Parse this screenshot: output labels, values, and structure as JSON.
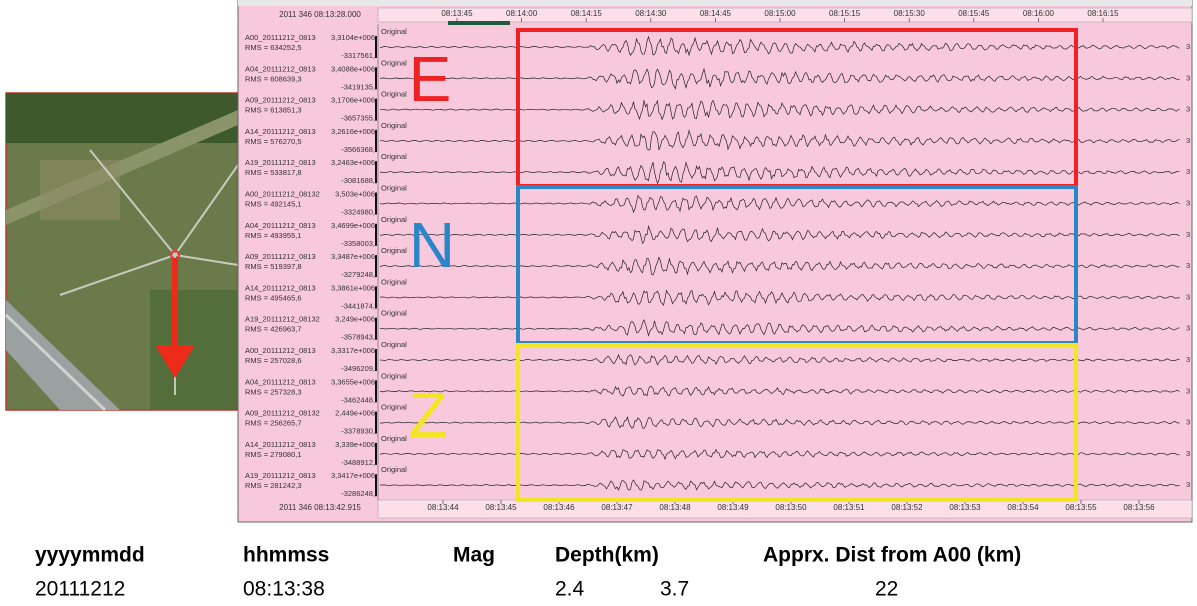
{
  "seismogram": {
    "start_time": "2011 346 08:13:28.000",
    "end_time": "2011 346 08:13:42.915",
    "top_ticks": [
      "08:13:45",
      "08:14:00",
      "08:14:15",
      "08:14:30",
      "08:14:45",
      "08:15:00",
      "08:15:15",
      "08:15:30",
      "08:15:45",
      "08:16:00",
      "08:16:15"
    ],
    "bottom_ticks": [
      "08:13:44",
      "08:13:45",
      "08:13:46",
      "08:13:47",
      "08:13:48",
      "08:13:49",
      "08:13:50",
      "08:13:51",
      "08:13:52",
      "08:13:53",
      "08:13:54",
      "08:13:55",
      "08:13:56"
    ],
    "component_labels": [
      "E",
      "N",
      "Z"
    ],
    "traces": [
      {
        "name": "A00_20111212_0813",
        "max": "3,3104e+006",
        "rms": "RMS = 634252,5",
        "min": "-3317561,",
        "tag": "Original",
        "edge": "3"
      },
      {
        "name": "A04_20111212_0813",
        "max": "3,4088e+006",
        "rms": "RMS = 608639,3",
        "min": "-3419135,",
        "tag": "Original",
        "edge": "3"
      },
      {
        "name": "A09_20111212_0813",
        "max": "3,1706e+006",
        "rms": "RMS = 613851,3",
        "min": "-3657355,",
        "tag": "Original",
        "edge": "3"
      },
      {
        "name": "A14_20111212_0813",
        "max": "3,2616e+006",
        "rms": "RMS = 576270,5",
        "min": "-3566368,",
        "tag": "Original",
        "edge": "3"
      },
      {
        "name": "A19_20111212_0813",
        "max": "3,2463e+006",
        "rms": "RMS = 533817,8",
        "min": "-3081688,",
        "tag": "Original",
        "edge": "3"
      },
      {
        "name": "A00_20111212_08132",
        "max": "3,503e+006",
        "rms": "RMS = 492145,1",
        "min": "-3324980,",
        "tag": "Original",
        "edge": "3"
      },
      {
        "name": "A04_20111212_0813",
        "max": "3,4699e+006",
        "rms": "RMS = 493955,1",
        "min": "-3358003,",
        "tag": "Original",
        "edge": "3"
      },
      {
        "name": "A09_20111212_0813",
        "max": "3,3487e+006",
        "rms": "RMS = 519397,8",
        "min": "-3279248,",
        "tag": "Original",
        "edge": "3"
      },
      {
        "name": "A14_20111212_0813",
        "max": "3,3861e+006",
        "rms": "RMS = 495465,6",
        "min": "-3441874,",
        "tag": "Original",
        "edge": "3"
      },
      {
        "name": "A19_20111212_08132",
        "max": "3,249e+006",
        "rms": "RMS = 426963,7",
        "min": "-3578943,",
        "tag": "Original",
        "edge": "3"
      },
      {
        "name": "A00_20111212_0813",
        "max": "3,3317e+006",
        "rms": "RMS = 257028,6",
        "min": "-3496209,",
        "tag": "Original",
        "edge": "3"
      },
      {
        "name": "A04_20111212_0813",
        "max": "3,3655e+006",
        "rms": "RMS = 257328,3",
        "min": "-3462448,",
        "tag": "Original",
        "edge": "3"
      },
      {
        "name": "A09_20111212_08132",
        "max": "2,449e+006",
        "rms": "RMS = 256265,7",
        "min": "-3378930,",
        "tag": "Original",
        "edge": "3"
      },
      {
        "name": "A14_20111212_0813",
        "max": "3,339e+006",
        "rms": "RMS = 279080,1",
        "min": "-3488912,",
        "tag": "Original",
        "edge": "3"
      },
      {
        "name": "A19_20111212_0813",
        "max": "3,3417e+006",
        "rms": "RMS = 281242,3",
        "min": "-3286248,",
        "tag": "Original",
        "edge": "3"
      }
    ]
  },
  "table": {
    "headers": [
      "yyyymmdd",
      "hhmmss",
      "Mag",
      "Depth(km)",
      "Apprx. Dist from A00 (km)"
    ],
    "row": [
      "20111212",
      "08:13:38",
      "2.4",
      "3.7",
      "22"
    ]
  }
}
